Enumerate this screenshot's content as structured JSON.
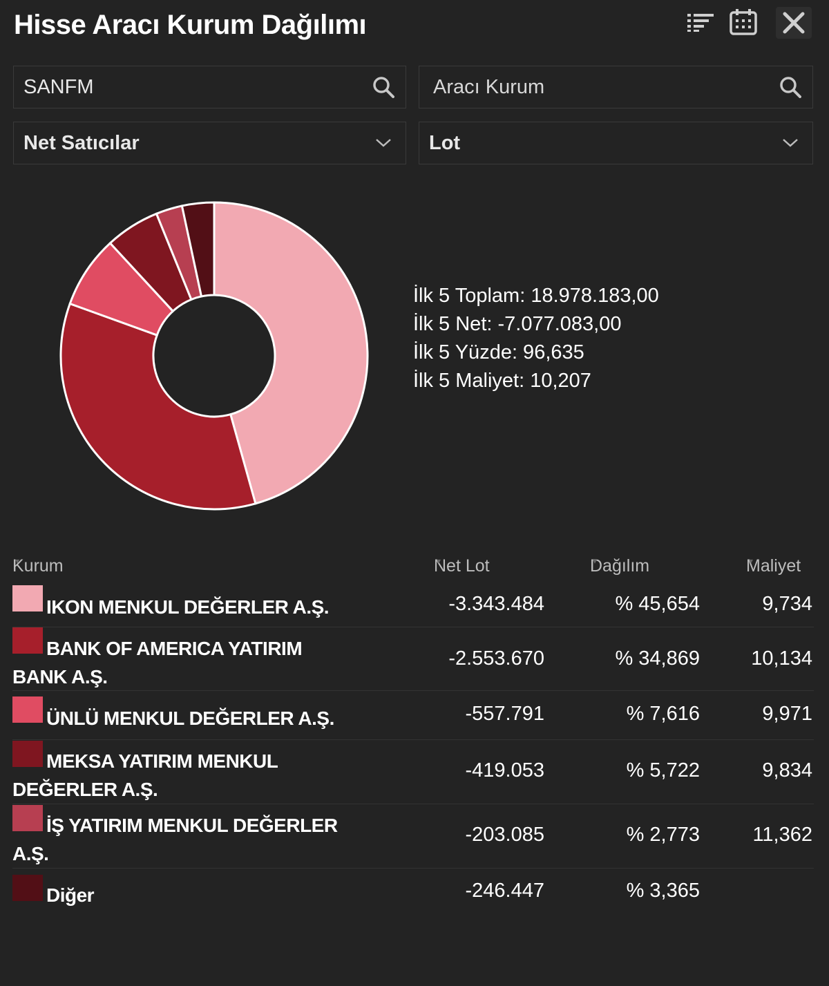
{
  "header": {
    "title": "Hisse Aracı Kurum Dağılımı"
  },
  "toolbar": {
    "sort_icon": "sort-list-icon",
    "calendar_icon": "calendar-icon",
    "close_icon": "close-icon"
  },
  "filters": {
    "symbol": {
      "value": "SANFM",
      "icon": "search-icon"
    },
    "broker": {
      "placeholder": "Aracı Kurum",
      "icon": "search-icon"
    },
    "side": {
      "selected": "Net Satıcılar",
      "icon": "chevron-down-icon"
    },
    "unit": {
      "selected": "Lot",
      "icon": "chevron-down-icon"
    }
  },
  "summary": {
    "total": "İlk 5 Toplam: 18.978.183,00",
    "net": "İlk 5 Net: -7.077.083,00",
    "percent": "İlk 5 Yüzde: 96,635",
    "cost": "İlk 5 Maliyet: 10,207"
  },
  "table": {
    "headers": {
      "kurum": "Kurum",
      "net_lot": "Net Lot",
      "dagilim": "Dağılım",
      "maliyet": "Maliyet"
    },
    "rows": [
      {
        "name": "IKON MENKUL DEĞERLER A.Ş.",
        "net_lot": "-3.343.484",
        "dagilim": "% 45,654",
        "maliyet": "9,734",
        "color": "#f2a9b2"
      },
      {
        "name": "BANK OF AMERICA YATIRIM BANK A.Ş.",
        "net_lot": "-2.553.670",
        "dagilim": "% 34,869",
        "maliyet": "10,134",
        "color": "#a61f2b"
      },
      {
        "name": "ÜNLÜ MENKUL DEĞERLER A.Ş.",
        "net_lot": "-557.791",
        "dagilim": "% 7,616",
        "maliyet": "9,971",
        "color": "#e04c62"
      },
      {
        "name": "MEKSA YATIRIM MENKUL DEĞERLER A.Ş.",
        "net_lot": "-419.053",
        "dagilim": "% 5,722",
        "maliyet": "9,834",
        "color": "#7f1620"
      },
      {
        "name": "İŞ YATIRIM MENKUL DEĞERLER A.Ş.",
        "net_lot": "-203.085",
        "dagilim": "% 2,773",
        "maliyet": "11,362",
        "color": "#b73f51"
      },
      {
        "name": "Diğer",
        "net_lot": "-246.447",
        "dagilim": "% 3,365",
        "maliyet": "",
        "color": "#520f16"
      }
    ]
  },
  "chart_data": {
    "type": "pie",
    "categories": [
      "IKON MENKUL DEĞERLER A.Ş.",
      "BANK OF AMERICA YATIRIM BANK A.Ş.",
      "ÜNLÜ MENKUL DEĞERLER A.Ş.",
      "MEKSA YATIRIM MENKUL DEĞERLER A.Ş.",
      "İŞ YATIRIM MENKUL DEĞERLER A.Ş.",
      "Diğer"
    ],
    "values": [
      45.654,
      34.869,
      7.616,
      5.722,
      2.773,
      3.365
    ],
    "colors": [
      "#f2a9b2",
      "#a61f2b",
      "#e04c62",
      "#7f1620",
      "#b73f51",
      "#520f16"
    ],
    "donut": true
  }
}
